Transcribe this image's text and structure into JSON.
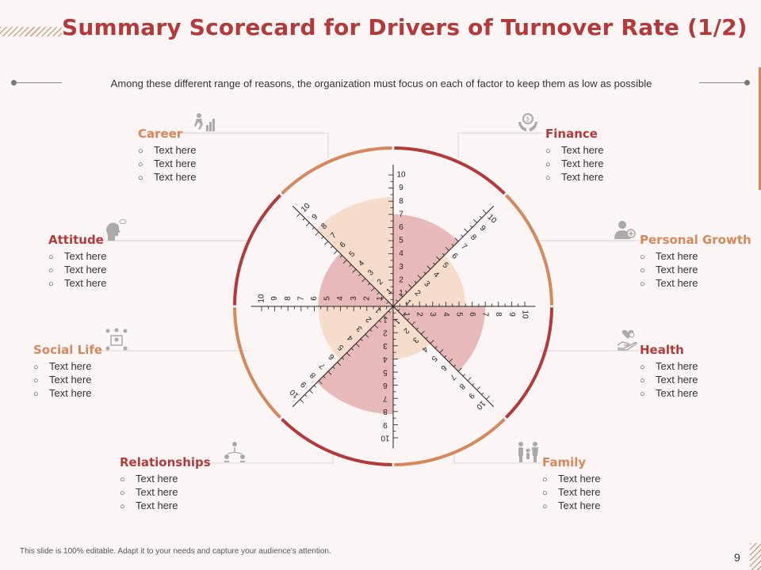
{
  "title": "Summary Scorecard for Drivers of Turnover Rate (1/2)",
  "subtitle": "Among these different range of reasons, the organization must focus on each of factor to keep them as low as possible",
  "footer": "This slide is 100% editable. Adapt it to your needs and capture your audience's attention.",
  "page_number": "9",
  "colors": {
    "red": "#b33a3a",
    "orange": "#d7875c",
    "pink_fill": "#e8b9b9",
    "peach_fill": "#f6dccb"
  },
  "factors": [
    {
      "name": "Career",
      "color": "#d7875c",
      "icon": "climbing-steps-icon",
      "items": [
        "Text here",
        "Text here",
        "Text here"
      ]
    },
    {
      "name": "Finance",
      "color": "#b33a3a",
      "icon": "money-hands-icon",
      "items": [
        "Text here",
        "Text here",
        "Text here"
      ]
    },
    {
      "name": "Attitude",
      "color": "#b33a3a",
      "icon": "head-speech-icon",
      "items": [
        "Text here",
        "Text here",
        "Text here"
      ]
    },
    {
      "name": "Personal Growth",
      "color": "#d7875c",
      "icon": "person-growth-icon",
      "items": [
        "Text here",
        "Text here",
        "Text here"
      ]
    },
    {
      "name": "Social Life",
      "color": "#d7875c",
      "icon": "social-network-icon",
      "items": [
        "Text here",
        "Text here",
        "Text here"
      ]
    },
    {
      "name": "Health",
      "color": "#b33a3a",
      "icon": "heart-hand-icon",
      "items": [
        "Text here",
        "Text here",
        "Text here"
      ]
    },
    {
      "name": "Relationships",
      "color": "#b33a3a",
      "icon": "people-network-icon",
      "items": [
        "Text here",
        "Text here",
        "Text here"
      ]
    },
    {
      "name": "Family",
      "color": "#d7875c",
      "icon": "family-icon",
      "items": [
        "Text here",
        "Text here",
        "Text here"
      ]
    }
  ],
  "chart_data": {
    "type": "radial-scorecard",
    "scale": {
      "min": 0,
      "max": 10,
      "ticks": [
        "1",
        "2",
        "3",
        "4",
        "5",
        "6",
        "7",
        "8",
        "9",
        "10"
      ]
    },
    "sectors": [
      {
        "factor": "Finance",
        "value": 7
      },
      {
        "factor": "Personal Growth",
        "value": 5.5
      },
      {
        "factor": "Health",
        "value": 7
      },
      {
        "factor": "Family",
        "value": 4
      },
      {
        "factor": "Relationships",
        "value": 8.2
      },
      {
        "factor": "Social Life",
        "value": 5.7
      },
      {
        "factor": "Attitude",
        "value": 5.7
      },
      {
        "factor": "Career",
        "value": 8.3
      }
    ]
  }
}
